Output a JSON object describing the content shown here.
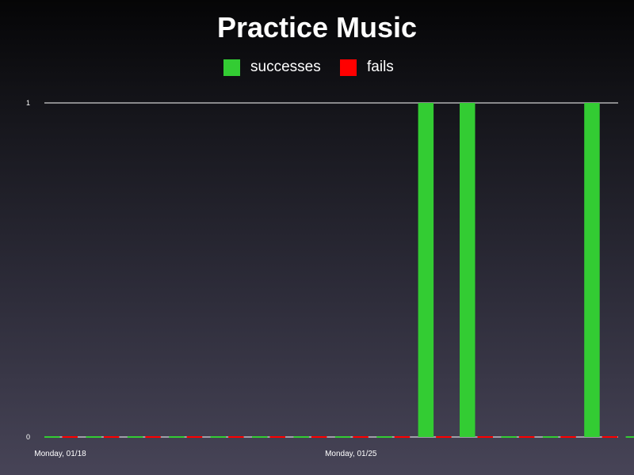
{
  "chart_data": {
    "type": "bar",
    "title": "Practice Music",
    "xlabel": "",
    "ylabel": "",
    "ylim": [
      0,
      1
    ],
    "y_ticks": [
      "0",
      "1"
    ],
    "grid": false,
    "legend_position": "top-center",
    "categories": [
      "Monday, 01/18",
      "",
      "",
      "",
      "",
      "",
      "",
      "Monday, 01/25",
      "",
      "",
      "",
      "",
      "",
      "",
      ""
    ],
    "x_tick_labels": [
      "Monday, 01/18",
      "Monday, 01/25"
    ],
    "series": [
      {
        "name": "successes",
        "color": "#33cc33",
        "values": [
          0,
          0,
          0,
          0,
          0,
          0,
          0,
          0,
          0,
          1,
          1,
          0,
          0,
          1,
          0
        ]
      },
      {
        "name": "fails",
        "color": "#ff0000",
        "values": [
          0,
          0,
          0,
          0,
          0,
          0,
          0,
          0,
          0,
          0,
          0,
          0,
          0,
          0,
          0
        ]
      }
    ]
  },
  "colors": {
    "axis": "#ffffff",
    "text": "#ffffff"
  }
}
